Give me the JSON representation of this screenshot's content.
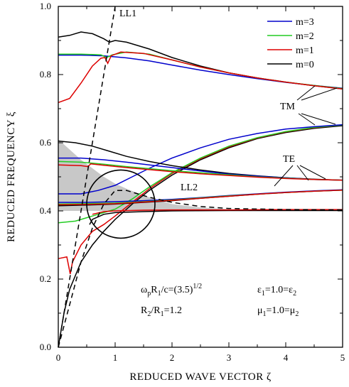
{
  "chart_data": {
    "type": "line",
    "title": "",
    "xlabel": "REDUCED WAVE VECTOR  ζ",
    "ylabel": "REDUCED FREQUENCY  ξ",
    "xlim": [
      0,
      5
    ],
    "ylim": [
      0,
      1.0
    ],
    "xticks": [
      "0",
      "1",
      "2",
      "3",
      "4",
      "5"
    ],
    "yticks": [
      "0.0",
      "0.2",
      "0.4",
      "0.6",
      "0.8",
      "1.0"
    ],
    "grid": false,
    "legend_position": "top-right",
    "legend": [
      {
        "name": "m=3",
        "color": "#0000cc"
      },
      {
        "name": "m=2",
        "color": "#22cc22"
      },
      {
        "name": "m=1",
        "color": "#dd0000"
      },
      {
        "name": "m=0",
        "color": "#000000"
      }
    ],
    "series": [
      {
        "name": "m=0",
        "color": "#000000",
        "mode": "TM upper",
        "points": [
          [
            0,
            0.91
          ],
          [
            0.2,
            0.915
          ],
          [
            0.4,
            0.925
          ],
          [
            0.6,
            0.92
          ],
          [
            0.8,
            0.905
          ],
          [
            0.9,
            0.895
          ],
          [
            1.0,
            0.9
          ],
          [
            1.2,
            0.895
          ],
          [
            1.6,
            0.875
          ],
          [
            2,
            0.85
          ],
          [
            2.5,
            0.825
          ],
          [
            3,
            0.805
          ],
          [
            3.5,
            0.79
          ],
          [
            4,
            0.778
          ],
          [
            4.5,
            0.767
          ],
          [
            5,
            0.758
          ]
        ]
      },
      {
        "name": "m=3",
        "color": "#0000cc",
        "mode": "TM upper",
        "points": [
          [
            0,
            0.857
          ],
          [
            0.4,
            0.857
          ],
          [
            0.8,
            0.855
          ],
          [
            1.2,
            0.849
          ],
          [
            1.6,
            0.84
          ],
          [
            2,
            0.828
          ],
          [
            2.5,
            0.813
          ],
          [
            3,
            0.8
          ],
          [
            3.5,
            0.788
          ],
          [
            4,
            0.777
          ],
          [
            4.5,
            0.768
          ],
          [
            5,
            0.76
          ]
        ]
      },
      {
        "name": "m=2",
        "color": "#22cc22",
        "mode": "TM upper",
        "points": [
          [
            0,
            0.86
          ],
          [
            0.4,
            0.86
          ],
          [
            0.75,
            0.858
          ],
          [
            0.85,
            0.85
          ],
          [
            0.95,
            0.858
          ],
          [
            1.2,
            0.866
          ],
          [
            1.6,
            0.86
          ],
          [
            2,
            0.843
          ],
          [
            2.5,
            0.822
          ],
          [
            3,
            0.805
          ],
          [
            3.5,
            0.79
          ],
          [
            4,
            0.778
          ],
          [
            4.5,
            0.768
          ],
          [
            5,
            0.759
          ]
        ]
      },
      {
        "name": "m=1",
        "color": "#dd0000",
        "mode": "TM upper",
        "points": [
          [
            0,
            0.718
          ],
          [
            0.2,
            0.73
          ],
          [
            0.4,
            0.775
          ],
          [
            0.6,
            0.825
          ],
          [
            0.75,
            0.848
          ],
          [
            0.82,
            0.85
          ],
          [
            0.87,
            0.833
          ],
          [
            0.93,
            0.855
          ],
          [
            1.1,
            0.866
          ],
          [
            1.5,
            0.862
          ],
          [
            2,
            0.843
          ],
          [
            2.5,
            0.822
          ],
          [
            3,
            0.805
          ],
          [
            3.5,
            0.79
          ],
          [
            4,
            0.778
          ],
          [
            4.5,
            0.767
          ],
          [
            5,
            0.758
          ]
        ]
      },
      {
        "name": "m=0",
        "color": "#000000",
        "mode": "TM lower",
        "points": [
          [
            0,
            0
          ],
          [
            0.1,
            0.1
          ],
          [
            0.2,
            0.17
          ],
          [
            0.4,
            0.25
          ],
          [
            0.6,
            0.3
          ],
          [
            0.8,
            0.34
          ],
          [
            1,
            0.375
          ],
          [
            1.3,
            0.42
          ],
          [
            1.6,
            0.46
          ],
          [
            2,
            0.505
          ],
          [
            2.5,
            0.55
          ],
          [
            3,
            0.585
          ],
          [
            3.5,
            0.612
          ],
          [
            4,
            0.63
          ],
          [
            4.5,
            0.642
          ],
          [
            5,
            0.65
          ]
        ]
      },
      {
        "name": "m=1",
        "color": "#dd0000",
        "mode": "TM lower",
        "points": [
          [
            0,
            0.26
          ],
          [
            0.15,
            0.265
          ],
          [
            0.21,
            0.215
          ],
          [
            0.25,
            0.25
          ],
          [
            0.4,
            0.3
          ],
          [
            0.6,
            0.34
          ],
          [
            0.8,
            0.36
          ],
          [
            1,
            0.385
          ],
          [
            1.3,
            0.425
          ],
          [
            1.6,
            0.465
          ],
          [
            2,
            0.51
          ],
          [
            2.5,
            0.553
          ],
          [
            3,
            0.588
          ],
          [
            3.5,
            0.614
          ],
          [
            4,
            0.632
          ],
          [
            4.5,
            0.644
          ],
          [
            5,
            0.652
          ]
        ]
      },
      {
        "name": "m=2",
        "color": "#22cc22",
        "mode": "TM lower",
        "points": [
          [
            0,
            0.365
          ],
          [
            0.3,
            0.37
          ],
          [
            0.5,
            0.38
          ],
          [
            0.8,
            0.395
          ],
          [
            1,
            0.405
          ],
          [
            1.3,
            0.435
          ],
          [
            1.6,
            0.47
          ],
          [
            2,
            0.512
          ],
          [
            2.5,
            0.555
          ],
          [
            3,
            0.59
          ],
          [
            3.5,
            0.615
          ],
          [
            4,
            0.633
          ],
          [
            4.5,
            0.645
          ],
          [
            5,
            0.652
          ]
        ]
      },
      {
        "name": "m=3",
        "color": "#0000cc",
        "mode": "TM lower",
        "points": [
          [
            0,
            0.45
          ],
          [
            0.4,
            0.45
          ],
          [
            0.7,
            0.46
          ],
          [
            1,
            0.475
          ],
          [
            1.3,
            0.5
          ],
          [
            1.6,
            0.525
          ],
          [
            2,
            0.555
          ],
          [
            2.5,
            0.585
          ],
          [
            3,
            0.61
          ],
          [
            3.5,
            0.627
          ],
          [
            4,
            0.64
          ],
          [
            4.5,
            0.647
          ],
          [
            5,
            0.653
          ]
        ]
      },
      {
        "name": "m=0",
        "color": "#000000",
        "mode": "TE",
        "points": [
          [
            0,
            0.605
          ],
          [
            0.3,
            0.6
          ],
          [
            0.6,
            0.59
          ],
          [
            0.9,
            0.575
          ],
          [
            1.2,
            0.56
          ],
          [
            1.6,
            0.545
          ],
          [
            2,
            0.533
          ],
          [
            2.5,
            0.52
          ],
          [
            3,
            0.51
          ],
          [
            3.5,
            0.503
          ],
          [
            4,
            0.497
          ],
          [
            4.5,
            0.493
          ],
          [
            5,
            0.49
          ]
        ]
      },
      {
        "name": "m=3",
        "color": "#0000cc",
        "mode": "TE",
        "points": [
          [
            0,
            0.555
          ],
          [
            0.4,
            0.555
          ],
          [
            0.8,
            0.55
          ],
          [
            1.2,
            0.543
          ],
          [
            1.6,
            0.535
          ],
          [
            2,
            0.527
          ],
          [
            2.5,
            0.517
          ],
          [
            3,
            0.508
          ],
          [
            3.5,
            0.502
          ],
          [
            4,
            0.497
          ],
          [
            4.5,
            0.492
          ],
          [
            5,
            0.49
          ]
        ]
      },
      {
        "name": "m=2",
        "color": "#22cc22",
        "mode": "TE",
        "points": [
          [
            0,
            0.545
          ],
          [
            0.4,
            0.543
          ],
          [
            0.8,
            0.537
          ],
          [
            1.2,
            0.53
          ],
          [
            1.6,
            0.524
          ],
          [
            2,
            0.518
          ],
          [
            2.5,
            0.512
          ],
          [
            3,
            0.506
          ],
          [
            3.5,
            0.5
          ],
          [
            4,
            0.496
          ],
          [
            4.5,
            0.492
          ],
          [
            5,
            0.49
          ]
        ]
      },
      {
        "name": "m=1",
        "color": "#dd0000",
        "mode": "TE",
        "points": [
          [
            0,
            0.535
          ],
          [
            0.4,
            0.533
          ],
          [
            0.52,
            0.53
          ],
          [
            0.57,
            0.538
          ],
          [
            0.8,
            0.534
          ],
          [
            1.2,
            0.527
          ],
          [
            1.6,
            0.521
          ],
          [
            2,
            0.515
          ],
          [
            2.5,
            0.509
          ],
          [
            3,
            0.504
          ],
          [
            3.5,
            0.499
          ],
          [
            4,
            0.495
          ],
          [
            4.5,
            0.492
          ],
          [
            5,
            0.49
          ]
        ]
      },
      {
        "name": "m=0",
        "color": "#000000",
        "mode": "TE lower",
        "points": [
          [
            0,
            0.415
          ],
          [
            0.5,
            0.417
          ],
          [
            1,
            0.42
          ],
          [
            1.5,
            0.425
          ],
          [
            2,
            0.43
          ],
          [
            2.5,
            0.437
          ],
          [
            3,
            0.443
          ],
          [
            3.5,
            0.449
          ],
          [
            4,
            0.454
          ],
          [
            4.5,
            0.458
          ],
          [
            5,
            0.461
          ]
        ]
      },
      {
        "name": "m=3",
        "color": "#0000cc",
        "mode": "TE lower",
        "points": [
          [
            0,
            0.425
          ],
          [
            0.5,
            0.425
          ],
          [
            1,
            0.427
          ],
          [
            1.5,
            0.43
          ],
          [
            2,
            0.434
          ],
          [
            2.5,
            0.439
          ],
          [
            3,
            0.445
          ],
          [
            3.5,
            0.45
          ],
          [
            4,
            0.455
          ],
          [
            4.5,
            0.459
          ],
          [
            5,
            0.462
          ]
        ]
      },
      {
        "name": "m=2",
        "color": "#22cc22",
        "mode": "TE lower",
        "points": [
          [
            0,
            0.42
          ],
          [
            0.5,
            0.421
          ],
          [
            1,
            0.423
          ],
          [
            1.5,
            0.427
          ],
          [
            2,
            0.432
          ],
          [
            2.5,
            0.438
          ],
          [
            3,
            0.444
          ],
          [
            3.5,
            0.449
          ],
          [
            4,
            0.454
          ],
          [
            4.5,
            0.458
          ],
          [
            5,
            0.461
          ]
        ]
      },
      {
        "name": "m=1",
        "color": "#dd0000",
        "mode": "TE lower",
        "points": [
          [
            0,
            0.418
          ],
          [
            0.5,
            0.419
          ],
          [
            1,
            0.421
          ],
          [
            1.5,
            0.426
          ],
          [
            2,
            0.431
          ],
          [
            2.5,
            0.437
          ],
          [
            3,
            0.443
          ],
          [
            3.5,
            0.449
          ],
          [
            4,
            0.454
          ],
          [
            4.5,
            0.458
          ],
          [
            5,
            0.461
          ]
        ]
      },
      {
        "name": "m=0",
        "color": "#000000",
        "mode": "surface",
        "points": [
          [
            0.55,
            0.36
          ],
          [
            0.6,
            0.375
          ],
          [
            0.8,
            0.39
          ],
          [
            1,
            0.395
          ],
          [
            1.5,
            0.398
          ],
          [
            2,
            0.4
          ],
          [
            3,
            0.401
          ],
          [
            4,
            0.401
          ],
          [
            5,
            0.401
          ]
        ]
      },
      {
        "name": "m=1",
        "color": "#dd0000",
        "mode": "surface",
        "points": [
          [
            0.6,
            0.39
          ],
          [
            0.8,
            0.398
          ],
          [
            1,
            0.4
          ],
          [
            1.5,
            0.402
          ],
          [
            2,
            0.403
          ],
          [
            3,
            0.403
          ],
          [
            4,
            0.404
          ],
          [
            5,
            0.404
          ]
        ]
      }
    ],
    "light_lines": [
      {
        "name": "LL1",
        "style": "dashed",
        "points": [
          [
            0,
            0
          ],
          [
            0.2,
            0.2
          ],
          [
            0.4,
            0.4
          ],
          [
            0.6,
            0.6
          ],
          [
            0.8,
            0.8
          ],
          [
            1.0,
            1.0
          ]
        ]
      },
      {
        "name": "LL2",
        "style": "dashed",
        "points": [
          [
            0,
            0
          ],
          [
            0.4,
            0.25
          ],
          [
            0.6,
            0.35
          ],
          [
            0.8,
            0.42
          ],
          [
            1,
            0.46
          ],
          [
            1.2,
            0.46
          ],
          [
            1.6,
            0.44
          ],
          [
            2,
            0.425
          ],
          [
            2.5,
            0.413
          ],
          [
            3,
            0.407
          ],
          [
            4,
            0.404
          ],
          [
            5,
            0.403
          ]
        ]
      }
    ],
    "shaded_region": {
      "color": "#c8c8c8",
      "upper": [
        [
          0,
          0.61
        ],
        [
          0.2,
          0.58
        ],
        [
          0.4,
          0.55
        ],
        [
          0.6,
          0.525
        ],
        [
          0.8,
          0.5
        ],
        [
          1,
          0.48
        ],
        [
          1.2,
          0.465
        ],
        [
          1.5,
          0.445
        ],
        [
          2,
          0.42
        ],
        [
          2.5,
          0.41
        ],
        [
          3,
          0.405
        ]
      ],
      "lower": [
        [
          0,
          0.4
        ],
        [
          0.5,
          0.4
        ],
        [
          1,
          0.4
        ],
        [
          1.5,
          0.4
        ],
        [
          2,
          0.4
        ],
        [
          2.5,
          0.4
        ],
        [
          3,
          0.4
        ]
      ]
    },
    "ellipse": {
      "cx": 1.1,
      "cy": 0.42,
      "rx": 0.6,
      "ry": 0.1
    },
    "annotations": {
      "ll1": "LL1",
      "ll2": "LL2",
      "tm": "TM",
      "te": "TE",
      "params_left_1": "ωpR1/c=(3.5)1/2",
      "params_left_2": "R2/R1=1.2",
      "params_right_1": "ε1=1.0=ε2",
      "params_right_2": "μ1=1.0=μ2"
    }
  }
}
